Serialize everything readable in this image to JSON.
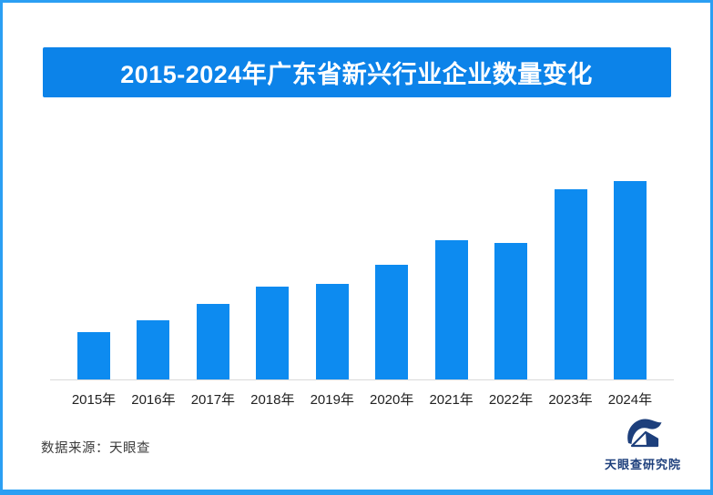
{
  "page": {
    "frame_color": "#2b9ff3",
    "background": "#ffffff"
  },
  "header": {
    "banner_color": "#0c83e9",
    "title_color": "#ffffff"
  },
  "chart_data": {
    "type": "bar",
    "title": "2015-2024年广东省新兴行业企业数量变化",
    "categories": [
      "2015年",
      "2016年",
      "2017年",
      "2018年",
      "2019年",
      "2020年",
      "2021年",
      "2022年",
      "2023年",
      "2024年"
    ],
    "values": [
      24,
      30,
      38,
      47,
      48,
      58,
      70,
      69,
      96,
      100
    ],
    "ylim": [
      0,
      100
    ],
    "xlabel": "",
    "ylabel": "",
    "y_axis_visible": false,
    "value_labels_visible": false,
    "grid": false,
    "legend": "none",
    "bar_color": "#0d8bf0",
    "axis_line_color": "#d9d9d9"
  },
  "footer": {
    "source": "数据来源：天眼查",
    "logo_text": "天眼查研究院",
    "logo_color": "#1d3f7c"
  }
}
